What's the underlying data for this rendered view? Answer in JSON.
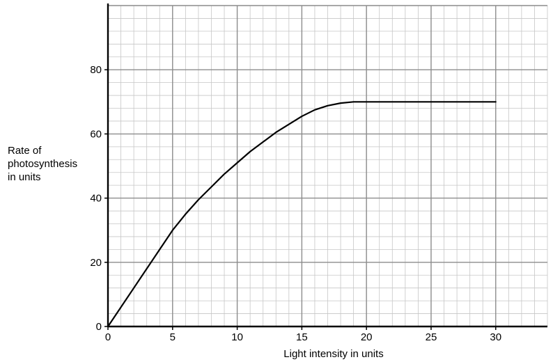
{
  "chart_data": {
    "type": "line",
    "title": "",
    "xlabel": "Light intensity in units",
    "ylabel_lines": [
      "Rate of",
      "photosynthesis",
      "in units"
    ],
    "xlim": [
      0,
      34
    ],
    "ylim": [
      0,
      100
    ],
    "x_ticks": [
      0,
      5,
      10,
      15,
      20,
      25,
      30
    ],
    "y_ticks": [
      0,
      20,
      40,
      60,
      80
    ],
    "grid": true,
    "major_grid_step": {
      "x": 5,
      "y": 20
    },
    "minor_grid_step": {
      "x": 1,
      "y": 4
    },
    "series": [
      {
        "color": "#000000",
        "x": [
          0,
          1,
          2,
          3,
          4,
          5,
          6,
          7,
          8,
          9,
          10,
          11,
          12,
          13,
          14,
          15,
          16,
          17,
          18,
          19,
          20,
          22,
          24,
          26,
          28,
          30
        ],
        "y": [
          0,
          6,
          12,
          18,
          24,
          30,
          35,
          39.5,
          43.5,
          47.5,
          51,
          54.5,
          57.5,
          60.5,
          63,
          65.5,
          67.5,
          68.8,
          69.6,
          70,
          70,
          70,
          70,
          70,
          70,
          70
        ]
      }
    ]
  }
}
